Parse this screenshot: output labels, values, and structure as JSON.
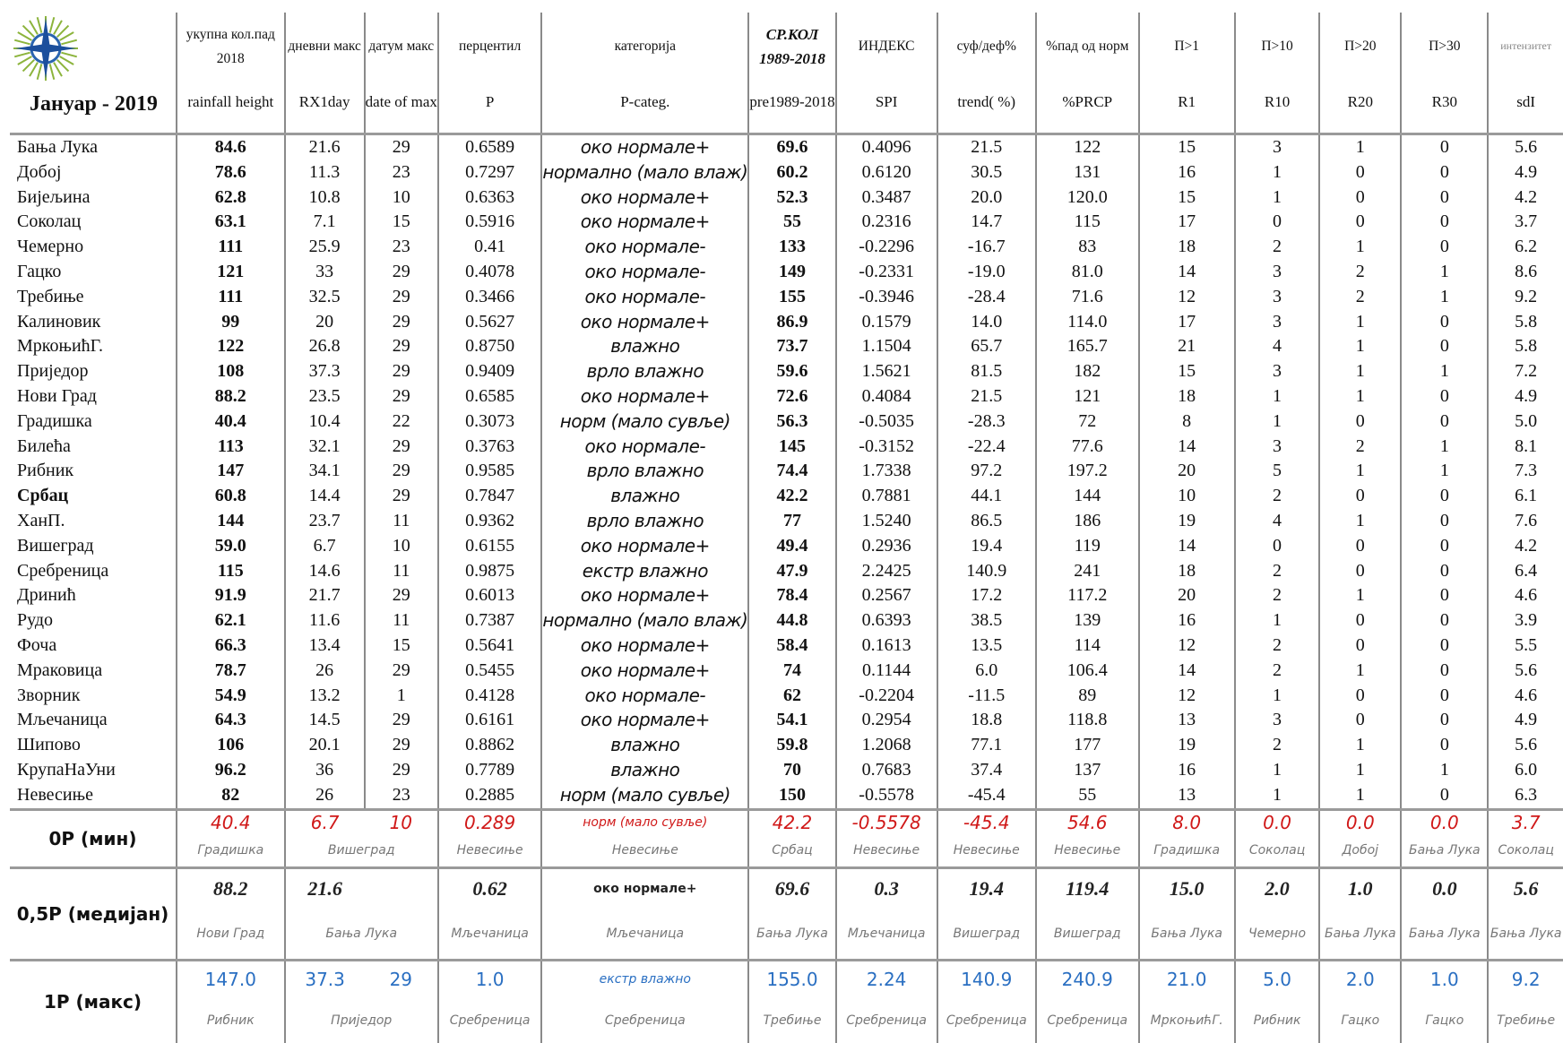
{
  "title": "Јануар - 2019",
  "columns": [
    {
      "top": "укупна кол.пад 2018",
      "bottom": "rainfall height"
    },
    {
      "top": "дневни макс",
      "bottom": "RX1day"
    },
    {
      "top": "датум макс",
      "bottom": "date of max"
    },
    {
      "top": "перцентил",
      "bottom": "P"
    },
    {
      "top": "категорија",
      "bottom": "P-categ."
    },
    {
      "top": "СР.КОЛ 1989-2018",
      "bottom": "pre1989-2018"
    },
    {
      "top": "ИНДЕКС",
      "bottom": "SPI"
    },
    {
      "top": "суф/деф%",
      "bottom": "trend( %)"
    },
    {
      "top": "%пад од норм",
      "bottom": "%PRCP"
    },
    {
      "top": "П>1",
      "bottom": "R1"
    },
    {
      "top": "П>10",
      "bottom": "R10"
    },
    {
      "top": "П>20",
      "bottom": "R20"
    },
    {
      "top": "П>30",
      "bottom": "R30"
    },
    {
      "top": "интензитет",
      "bottom": "sdI"
    }
  ],
  "rows": [
    [
      "Бања Лука",
      "84.6",
      "21.6",
      "29",
      "0.6589",
      "око нормале+",
      "69.6",
      "0.4096",
      "21.5",
      "122",
      "15",
      "3",
      "1",
      "0",
      "5.6"
    ],
    [
      "Добој",
      "78.6",
      "11.3",
      "23",
      "0.7297",
      "нормално (мало влаж)",
      "60.2",
      "0.6120",
      "30.5",
      "131",
      "16",
      "1",
      "0",
      "0",
      "4.9"
    ],
    [
      "Бијељина",
      "62.8",
      "10.8",
      "10",
      "0.6363",
      "око нормале+",
      "52.3",
      "0.3487",
      "20.0",
      "120.0",
      "15",
      "1",
      "0",
      "0",
      "4.2"
    ],
    [
      "Соколац",
      "63.1",
      "7.1",
      "15",
      "0.5916",
      "око нормале+",
      "55",
      "0.2316",
      "14.7",
      "115",
      "17",
      "0",
      "0",
      "0",
      "3.7"
    ],
    [
      "Чемерно",
      "111",
      "25.9",
      "23",
      "0.41",
      "око нормале-",
      "133",
      "-0.2296",
      "-16.7",
      "83",
      "18",
      "2",
      "1",
      "0",
      "6.2"
    ],
    [
      "Гацко",
      "121",
      "33",
      "29",
      "0.4078",
      "око нормале-",
      "149",
      "-0.2331",
      "-19.0",
      "81.0",
      "14",
      "3",
      "2",
      "1",
      "8.6"
    ],
    [
      "Требиње",
      "111",
      "32.5",
      "29",
      "0.3466",
      "око нормале-",
      "155",
      "-0.3946",
      "-28.4",
      "71.6",
      "12",
      "3",
      "2",
      "1",
      "9.2"
    ],
    [
      "Калиновик",
      "99",
      "20",
      "29",
      "0.5627",
      "око нормале+",
      "86.9",
      "0.1579",
      "14.0",
      "114.0",
      "17",
      "3",
      "1",
      "0",
      "5.8"
    ],
    [
      "МркоњићГ.",
      "122",
      "26.8",
      "29",
      "0.8750",
      "влажно",
      "73.7",
      "1.1504",
      "65.7",
      "165.7",
      "21",
      "4",
      "1",
      "0",
      "5.8"
    ],
    [
      "Приједор",
      "108",
      "37.3",
      "29",
      "0.9409",
      "врло влажно",
      "59.6",
      "1.5621",
      "81.5",
      "182",
      "15",
      "3",
      "1",
      "1",
      "7.2"
    ],
    [
      "Нови Град",
      "88.2",
      "23.5",
      "29",
      "0.6585",
      "око нормале+",
      "72.6",
      "0.4084",
      "21.5",
      "121",
      "18",
      "1",
      "1",
      "0",
      "4.9"
    ],
    [
      "Градишка",
      "40.4",
      "10.4",
      "22",
      "0.3073",
      "норм (мало сувље)",
      "56.3",
      "-0.5035",
      "-28.3",
      "72",
      "8",
      "1",
      "0",
      "0",
      "5.0"
    ],
    [
      "Билећа",
      "113",
      "32.1",
      "29",
      "0.3763",
      "око нормале-",
      "145",
      "-0.3152",
      "-22.4",
      "77.6",
      "14",
      "3",
      "2",
      "1",
      "8.1"
    ],
    [
      "Рибник",
      "147",
      "34.1",
      "29",
      "0.9585",
      "врло влажно",
      "74.4",
      "1.7338",
      "97.2",
      "197.2",
      "20",
      "5",
      "1",
      "1",
      "7.3"
    ],
    [
      "Србац",
      "60.8",
      "14.4",
      "29",
      "0.7847",
      "влажно",
      "42.2",
      "0.7881",
      "44.1",
      "144",
      "10",
      "2",
      "0",
      "0",
      "6.1"
    ],
    [
      "ХанП.",
      "144",
      "23.7",
      "11",
      "0.9362",
      "врло влажно",
      "77",
      "1.5240",
      "86.5",
      "186",
      "19",
      "4",
      "1",
      "0",
      "7.6"
    ],
    [
      "Вишеград",
      "59.0",
      "6.7",
      "10",
      "0.6155",
      "око нормале+",
      "49.4",
      "0.2936",
      "19.4",
      "119",
      "14",
      "0",
      "0",
      "0",
      "4.2"
    ],
    [
      "Сребреница",
      "115",
      "14.6",
      "11",
      "0.9875",
      "екстр влажно",
      "47.9",
      "2.2425",
      "140.9",
      "241",
      "18",
      "2",
      "0",
      "0",
      "6.4"
    ],
    [
      "Дринић",
      "91.9",
      "21.7",
      "29",
      "0.6013",
      "око нормале+",
      "78.4",
      "0.2567",
      "17.2",
      "117.2",
      "20",
      "2",
      "1",
      "0",
      "4.6"
    ],
    [
      "Рудо",
      "62.1",
      "11.6",
      "11",
      "0.7387",
      "нормално (мало влаж)",
      "44.8",
      "0.6393",
      "38.5",
      "139",
      "16",
      "1",
      "0",
      "0",
      "3.9"
    ],
    [
      "Фоча",
      "66.3",
      "13.4",
      "15",
      "0.5641",
      "око нормале+",
      "58.4",
      "0.1613",
      "13.5",
      "114",
      "12",
      "2",
      "0",
      "0",
      "5.5"
    ],
    [
      "Мраковица",
      "78.7",
      "26",
      "29",
      "0.5455",
      "око нормале+",
      "74",
      "0.1144",
      "6.0",
      "106.4",
      "14",
      "2",
      "1",
      "0",
      "5.6"
    ],
    [
      "Зворник",
      "54.9",
      "13.2",
      "1",
      "0.4128",
      "око нормале-",
      "62",
      "-0.2204",
      "-11.5",
      "89",
      "12",
      "1",
      "0",
      "0",
      "4.6"
    ],
    [
      "Мљечаница",
      "64.3",
      "14.5",
      "29",
      "0.6161",
      "око нормале+",
      "54.1",
      "0.2954",
      "18.8",
      "118.8",
      "13",
      "3",
      "0",
      "0",
      "4.9"
    ],
    [
      "Шипово",
      "106",
      "20.1",
      "29",
      "0.8862",
      "влажно",
      "59.8",
      "1.2068",
      "77.1",
      "177",
      "19",
      "2",
      "1",
      "0",
      "5.6"
    ],
    [
      "КрупаНаУни",
      "96.2",
      "36",
      "29",
      "0.7789",
      "влажно",
      "70",
      "0.7683",
      "37.4",
      "137",
      "16",
      "1",
      "1",
      "1",
      "6.0"
    ],
    [
      "Невесиње",
      "82",
      "26",
      "23",
      "0.2885",
      "норм (мало сувље)",
      "150",
      "-0.5578",
      "-45.4",
      "55",
      "13",
      "1",
      "1",
      "0",
      "6.3"
    ]
  ],
  "summary": [
    {
      "label": "0P (мин)",
      "values": [
        "40.4",
        "6.7",
        "10",
        "0.289",
        "норм (мало сувље)",
        "42.2",
        "-0.5578",
        "-45.4",
        "54.6",
        "8.0",
        "0.0",
        "0.0",
        "0.0",
        "3.7"
      ],
      "stations": [
        "Градишка",
        "Вишеград",
        "Невесиње",
        "Невесиње",
        "Србац",
        "Невесиње",
        "Невесиње",
        "Невесиње",
        "Градишка",
        "Соколац",
        "Добој",
        "Бања Лука",
        "Соколац"
      ]
    },
    {
      "label": "0,5P (медијан)",
      "values": [
        "88.2",
        "21.6",
        null,
        "0.62",
        "око нормале+",
        "69.6",
        "0.3",
        "19.4",
        "119.4",
        "15.0",
        "2.0",
        "1.0",
        "0.0",
        "5.6"
      ],
      "stations": [
        "Нови Град",
        "Бања Лука",
        "Мљечаница",
        "Мљечаница",
        "Бања Лука",
        "Мљечаница",
        "Вишеград",
        "Вишеград",
        "Бања Лука",
        "Чемерно",
        "Бања Лука",
        "Бања Лука",
        "Бања Лука"
      ]
    },
    {
      "label": "1P (макс)",
      "values": [
        "147.0",
        "37.3",
        "29",
        "1.0",
        "екстр влажно",
        "155.0",
        "2.24",
        "140.9",
        "240.9",
        "21.0",
        "5.0",
        "2.0",
        "1.0",
        "9.2"
      ],
      "stations": [
        "Рибник",
        "Приједор",
        "Сребреница",
        "Сребреница",
        "Требиње",
        "Сребреница",
        "Сребреница",
        "Сребреница",
        "МркоњићГ.",
        "Рибник",
        "Гацко",
        "Гацко",
        "Требиње"
      ]
    }
  ]
}
